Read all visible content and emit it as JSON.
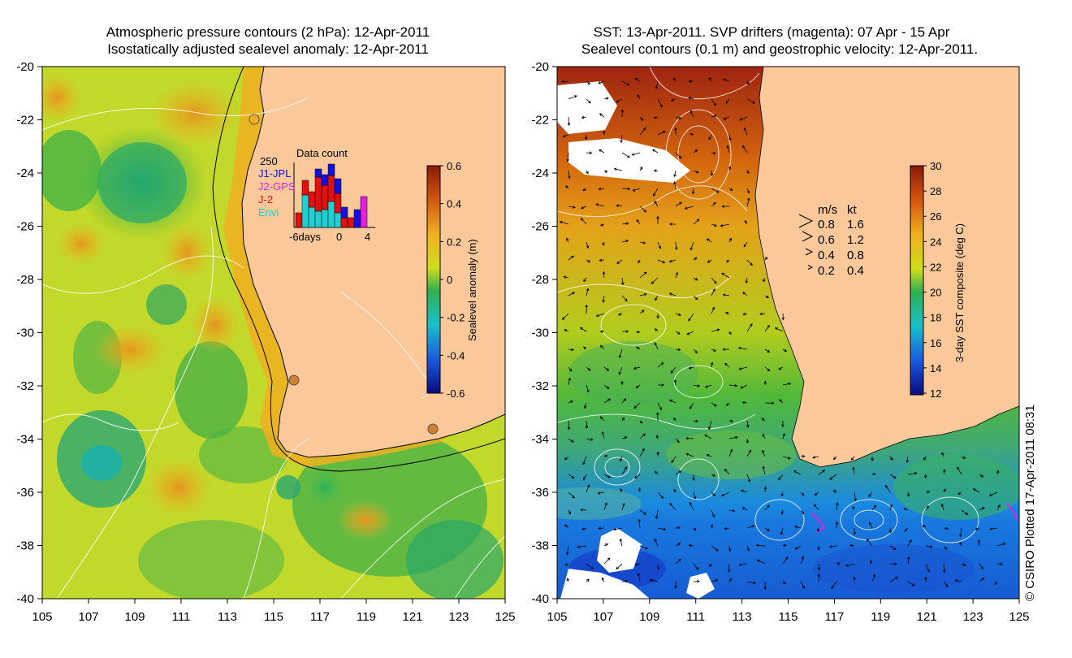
{
  "left_panel": {
    "title_line1": "Atmospheric pressure contours (2 hPa): 12-Apr-2011",
    "title_line2": "Isostatically adjusted sealevel anomaly: 12-Apr-2011",
    "y_ticks": [
      "-20",
      "-22",
      "-24",
      "-26",
      "-28",
      "-30",
      "-32",
      "-34",
      "-36",
      "-38",
      "-40"
    ],
    "x_ticks": [
      "105",
      "107",
      "109",
      "111",
      "113",
      "115",
      "117",
      "119",
      "121",
      "123",
      "125"
    ],
    "colorbar": {
      "label": "Sealevel anomaly (m)",
      "ticks": [
        "0.6",
        "0.4",
        "0.2",
        "0",
        "-0.2",
        "-0.4",
        "-0.6"
      ],
      "range": [
        -0.6,
        0.6
      ]
    },
    "inset": {
      "title": "Data count",
      "ymax_label": "250",
      "x_labels": [
        "-6days",
        "0",
        "4"
      ],
      "legend": [
        {
          "name": "J1-JPL",
          "color": "#1010e0"
        },
        {
          "name": "J2-GPS",
          "color": "#e020e0"
        },
        {
          "name": "J-2",
          "color": "#e01010"
        },
        {
          "name": "Envi",
          "color": "#20d0d0"
        }
      ]
    }
  },
  "right_panel": {
    "title_line1": "SST: 13-Apr-2011. SVP drifters (magenta): 07 Apr - 15 Apr",
    "title_line2": "Sealevel contours (0.1 m) and geostrophic velocity: 12-Apr-2011.",
    "y_ticks": [
      "-20",
      "-22",
      "-24",
      "-26",
      "-28",
      "-30",
      "-32",
      "-34",
      "-36",
      "-38",
      "-40"
    ],
    "x_ticks": [
      "105",
      "107",
      "109",
      "111",
      "113",
      "115",
      "117",
      "119",
      "121",
      "123",
      "125"
    ],
    "colorbar": {
      "label": "3-day SST composite (deg C)",
      "ticks": [
        "30",
        "28",
        "26",
        "24",
        "22",
        "20",
        "18",
        "16",
        "14",
        "12"
      ],
      "range": [
        12,
        30
      ]
    },
    "velocity_legend": {
      "header_ms": "m/s",
      "header_kt": "kt",
      "rows": [
        {
          "ms": "0.8",
          "kt": "1.6"
        },
        {
          "ms": "0.6",
          "kt": "1.2"
        },
        {
          "ms": "0.4",
          "kt": "0.8"
        },
        {
          "ms": "0.2",
          "kt": "0.4"
        }
      ]
    }
  },
  "credit": "© CSIRO Plotted 17-Apr-2011 08:31",
  "colors": {
    "land": "#fbc89a",
    "coastline": "#000000",
    "contour": "#ffffff",
    "drifter": "#e020e0"
  }
}
